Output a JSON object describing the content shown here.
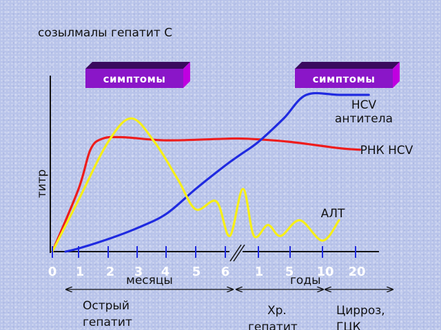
{
  "chart_data": {
    "type": "line",
    "title": "созылмалы гепатит С",
    "ylabel": "титр",
    "symptoms_label": "симптомы",
    "x_ticks_months": [
      "0",
      "1",
      "2",
      "3",
      "4",
      "5",
      "6"
    ],
    "x_ticks_years": [
      "1",
      "5",
      "10",
      "20"
    ],
    "x_unit_months": "месяцы",
    "x_unit_years": "годы",
    "phases": [
      {
        "label_lines": [
          "Острый",
          "гепатит"
        ]
      },
      {
        "label_lines": [
          "Хр.",
          "гепатит"
        ]
      },
      {
        "label_lines": [
          "Цирроз,",
          "ГЦК"
        ]
      }
    ],
    "series": [
      {
        "name": "HCV антитела",
        "label_lines": [
          "HCV",
          "антитела"
        ],
        "color": "#1f2ae0",
        "points": [
          [
            0.5,
            0.0
          ],
          [
            1,
            0.02
          ],
          [
            2,
            0.08
          ],
          [
            3,
            0.15
          ],
          [
            4,
            0.24
          ],
          [
            5,
            0.4
          ],
          [
            6,
            0.55
          ],
          [
            6.7,
            0.62
          ],
          [
            7.5,
            0.7
          ],
          [
            8.3,
            0.85
          ],
          [
            9,
            1.0
          ],
          [
            10,
            1.0
          ],
          [
            10.8,
            1.0
          ]
        ]
      },
      {
        "name": "РНК HCV",
        "label_lines": [
          "РНК HCV"
        ],
        "color": "#ee1c1c",
        "points": [
          [
            0,
            0.0
          ],
          [
            1,
            0.4
          ],
          [
            1.4,
            0.65
          ],
          [
            1.8,
            0.72
          ],
          [
            2.5,
            0.73
          ],
          [
            4,
            0.71
          ],
          [
            6,
            0.72
          ],
          [
            7,
            0.72
          ],
          [
            8.5,
            0.7
          ],
          [
            10,
            0.66
          ],
          [
            10.6,
            0.65
          ]
        ]
      },
      {
        "name": "АЛТ",
        "label_lines": [
          "АЛТ"
        ],
        "color": "#f6ef18",
        "points": [
          [
            0,
            0.0
          ],
          [
            1,
            0.33
          ],
          [
            2,
            0.7
          ],
          [
            2.8,
            0.85
          ],
          [
            3.6,
            0.7
          ],
          [
            4.4,
            0.46
          ],
          [
            5,
            0.27
          ],
          [
            5.7,
            0.32
          ],
          [
            6.2,
            0.1
          ],
          [
            6.8,
            0.4
          ],
          [
            7.3,
            0.1
          ],
          [
            7.8,
            0.17
          ],
          [
            8.2,
            0.1
          ],
          [
            8.8,
            0.2
          ],
          [
            9.5,
            0.07
          ],
          [
            10,
            0.2
          ]
        ]
      }
    ],
    "xlim": [
      0,
      11
    ],
    "ylim": [
      0,
      1
    ]
  }
}
